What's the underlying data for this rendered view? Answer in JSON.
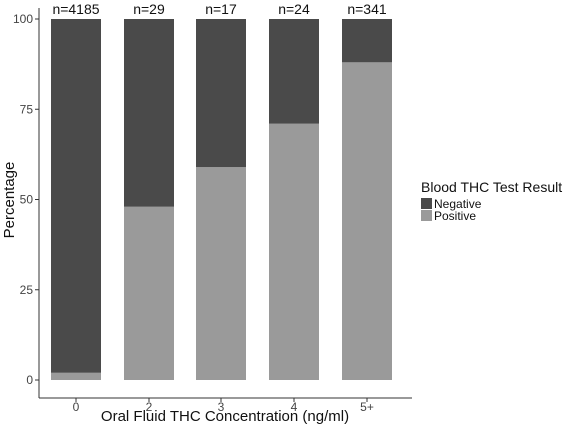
{
  "chart_data": {
    "type": "bar",
    "stacked": true,
    "title": "",
    "xlabel": "Oral Fluid THC Concentration (ng/ml)",
    "ylabel": "Percentage",
    "ylim": [
      0,
      100
    ],
    "yticks": [
      0,
      25,
      50,
      75,
      100
    ],
    "categories": [
      "0",
      "2",
      "3",
      "4",
      "5+"
    ],
    "annotations": [
      "n=4185",
      "n=29",
      "n=17",
      "n=24",
      "n=341"
    ],
    "legend": {
      "title": "Blood THC Test Result",
      "position": "right"
    },
    "grid": false,
    "series": [
      {
        "name": "Positive",
        "values": [
          2,
          48,
          59,
          71,
          88
        ],
        "color": "#9a9a9a"
      },
      {
        "name": "Negative",
        "values": [
          98,
          52,
          41,
          29,
          12
        ],
        "color": "#4a4a4a"
      }
    ]
  }
}
